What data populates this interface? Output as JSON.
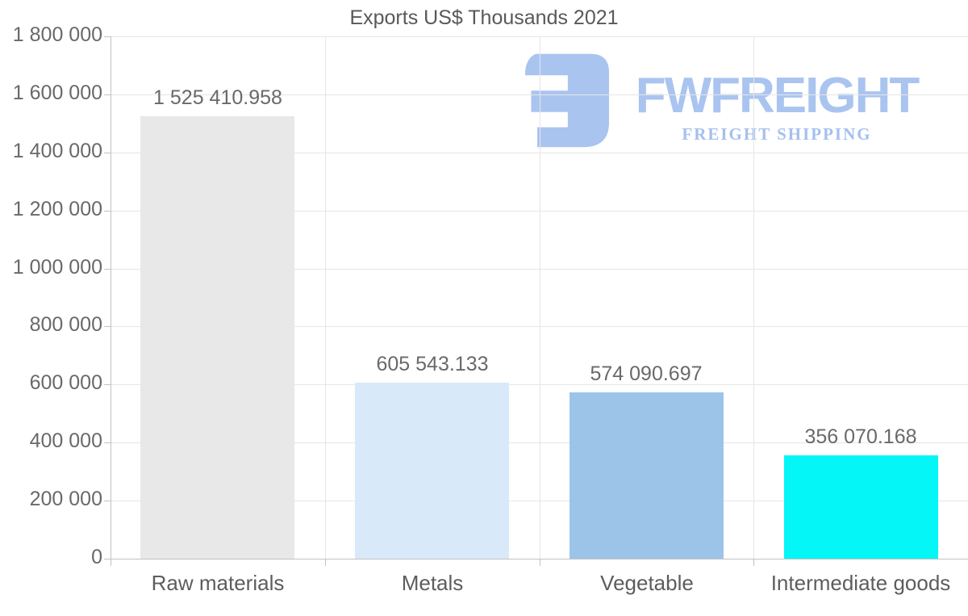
{
  "chart_data": {
    "type": "bar",
    "title": "Exports US$ Thousands 2021",
    "categories": [
      "Raw materials",
      "Metals",
      "Vegetable",
      "Intermediate goods"
    ],
    "values": [
      1525410.958,
      605543.133,
      574090.697,
      356070.168
    ],
    "value_labels": [
      "1 525 410.958",
      "605 543.133",
      "574 090.697",
      "356 070.168"
    ],
    "bar_colors": [
      "#e8e8e8",
      "#d8e9f9",
      "#9cc4e9",
      "#04f6f6"
    ],
    "xlabel": "",
    "ylabel": "",
    "ylim": [
      0,
      1800000
    ],
    "ytick_step": 200000,
    "ytick_labels": [
      "0",
      "200 000",
      "400 000",
      "600 000",
      "800 000",
      "1 000 000",
      "1 200 000",
      "1 400 000",
      "1 600 000",
      "1 800 000"
    ],
    "grid": true,
    "legend": "none",
    "gridline_color": "#e6e6e6",
    "axis_color": "#c2c2c2",
    "text_color": "#696969"
  },
  "logo": {
    "wordmark": "FWFREIGHT",
    "tagline": "FREIGHT SHIPPING",
    "color": "#aac4f0"
  }
}
